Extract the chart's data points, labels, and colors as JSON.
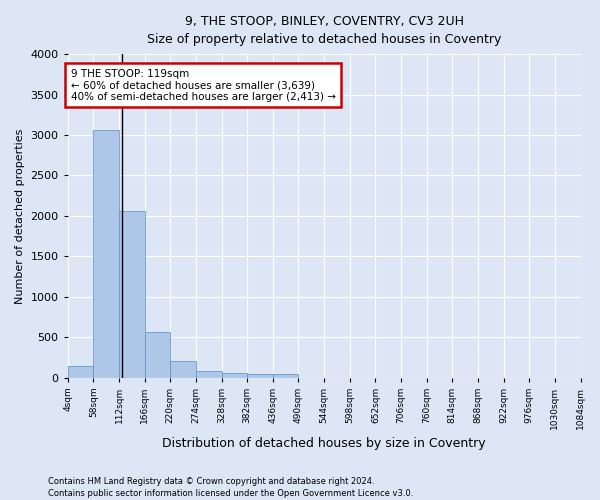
{
  "title_line1": "9, THE STOOP, BINLEY, COVENTRY, CV3 2UH",
  "title_line2": "Size of property relative to detached houses in Coventry",
  "xlabel": "Distribution of detached houses by size in Coventry",
  "ylabel": "Number of detached properties",
  "bar_color": "#aec6e8",
  "bar_edge_color": "#5a8fc2",
  "annotation_line_color": "#000000",
  "annotation_box_color": "#cc0000",
  "property_size": 119,
  "annotation_text_line1": "9 THE STOOP: 119sqm",
  "annotation_text_line2": "← 60% of detached houses are smaller (3,639)",
  "annotation_text_line3": "40% of semi-detached houses are larger (2,413) →",
  "footer_line1": "Contains HM Land Registry data © Crown copyright and database right 2024.",
  "footer_line2": "Contains public sector information licensed under the Open Government Licence v3.0.",
  "bin_edges": [
    4,
    58,
    112,
    166,
    220,
    274,
    328,
    382,
    436,
    490,
    544,
    598,
    652,
    706,
    760,
    814,
    868,
    922,
    976,
    1030,
    1084
  ],
  "bar_heights": [
    140,
    3060,
    2060,
    560,
    200,
    80,
    60,
    45,
    45,
    0,
    0,
    0,
    0,
    0,
    0,
    0,
    0,
    0,
    0,
    0
  ],
  "ylim": [
    0,
    4000
  ],
  "xlim": [
    4,
    1084
  ],
  "background_color": "#dce6f5",
  "plot_background_color": "#dce6f5",
  "grid_color": "#ffffff"
}
